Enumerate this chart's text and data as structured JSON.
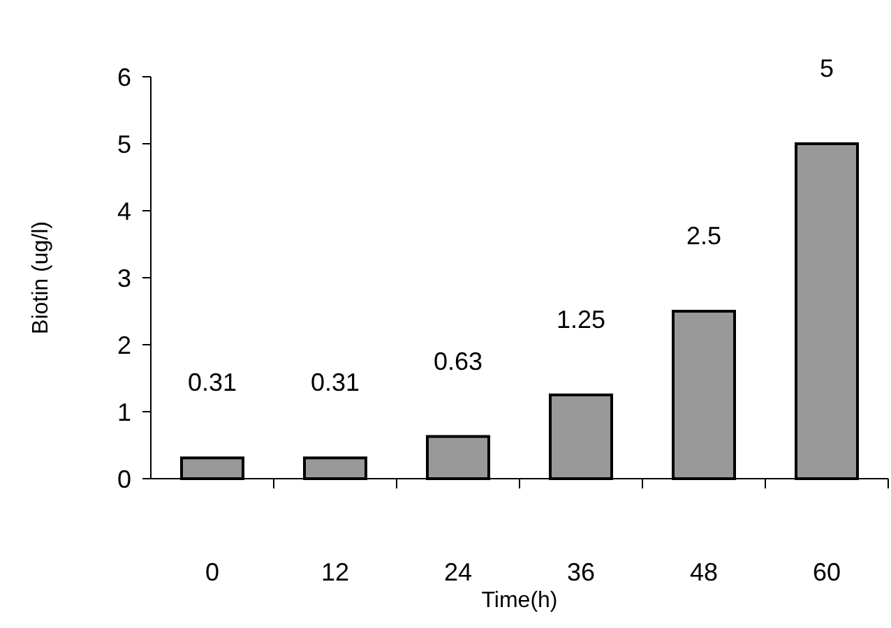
{
  "chart_data": {
    "type": "bar",
    "xlabel": "Time(h)",
    "ylabel": "Biotin (ug/l)",
    "categories": [
      "0",
      "12",
      "24",
      "36",
      "48",
      "60"
    ],
    "values": [
      0.31,
      0.31,
      0.63,
      1.25,
      2.5,
      5
    ],
    "color": "#999999",
    "ylim": [
      0,
      6
    ],
    "yticks": [
      0,
      1,
      2,
      3,
      4,
      5,
      6
    ],
    "data_labels": true
  }
}
